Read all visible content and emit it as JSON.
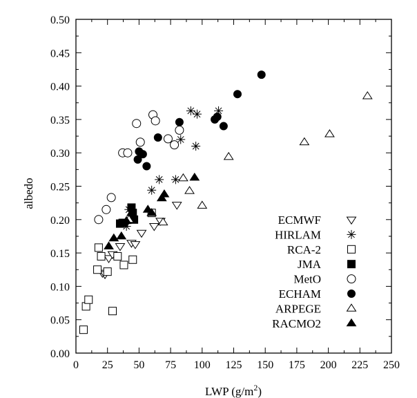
{
  "chart_data": {
    "type": "scatter",
    "title": "",
    "xlabel": "LWP (g/m",
    "xlabel_superscript": "2",
    "xlabel_suffix": ")",
    "ylabel": "albedo",
    "xlim": [
      0,
      250
    ],
    "ylim": [
      0,
      0.5
    ],
    "x_ticks": [
      0,
      25,
      50,
      75,
      100,
      125,
      150,
      175,
      200,
      225,
      250
    ],
    "y_ticks": [
      "0.00",
      "0.05",
      "0.10",
      "0.15",
      "0.20",
      "0.25",
      "0.30",
      "0.35",
      "0.40",
      "0.45",
      "0.50"
    ],
    "grid": false,
    "legend_position": "bottom-right",
    "series": [
      {
        "name": "ECMWF",
        "marker": "triangle-down-open",
        "points": [
          [
            21,
            0.12
          ],
          [
            23,
            0.118
          ],
          [
            26,
            0.142
          ],
          [
            29,
            0.148
          ],
          [
            35,
            0.16
          ],
          [
            44,
            0.165
          ],
          [
            47,
            0.163
          ],
          [
            52,
            0.18
          ],
          [
            62,
            0.19
          ],
          [
            67,
            0.198
          ],
          [
            80,
            0.222
          ]
        ]
      },
      {
        "name": "HIRLAM",
        "marker": "asterisk",
        "points": [
          [
            40,
            0.19
          ],
          [
            42,
            0.215
          ],
          [
            60,
            0.244
          ],
          [
            66,
            0.26
          ],
          [
            79,
            0.26
          ],
          [
            83,
            0.32
          ],
          [
            91,
            0.363
          ],
          [
            95,
            0.31
          ],
          [
            96,
            0.358
          ],
          [
            113,
            0.363
          ]
        ]
      },
      {
        "name": "RCA-2",
        "marker": "square-open",
        "points": [
          [
            6,
            0.035
          ],
          [
            8,
            0.07
          ],
          [
            10,
            0.08
          ],
          [
            17,
            0.125
          ],
          [
            18,
            0.158
          ],
          [
            20,
            0.145
          ],
          [
            25,
            0.122
          ],
          [
            29,
            0.063
          ],
          [
            33,
            0.145
          ],
          [
            37,
            0.195
          ],
          [
            38,
            0.132
          ],
          [
            45,
            0.14
          ],
          [
            60,
            0.21
          ]
        ]
      },
      {
        "name": "JMA",
        "marker": "square-filled",
        "points": [
          [
            35,
            0.194
          ],
          [
            38,
            0.195
          ],
          [
            44,
            0.218
          ],
          [
            45,
            0.21
          ],
          [
            46,
            0.2
          ]
        ]
      },
      {
        "name": "MetO",
        "marker": "circle-open",
        "points": [
          [
            18,
            0.2
          ],
          [
            24,
            0.215
          ],
          [
            28,
            0.233
          ],
          [
            37,
            0.3
          ],
          [
            41,
            0.3
          ],
          [
            48,
            0.344
          ],
          [
            51,
            0.316
          ],
          [
            61,
            0.357
          ],
          [
            63,
            0.348
          ],
          [
            73,
            0.321
          ],
          [
            78,
            0.312
          ],
          [
            82,
            0.334
          ]
        ]
      },
      {
        "name": "ECHAM",
        "marker": "circle-filled",
        "points": [
          [
            49,
            0.29
          ],
          [
            50,
            0.302
          ],
          [
            53,
            0.298
          ],
          [
            56,
            0.28
          ],
          [
            65,
            0.323
          ],
          [
            82,
            0.346
          ],
          [
            110,
            0.35
          ],
          [
            112,
            0.354
          ],
          [
            117,
            0.34
          ],
          [
            128,
            0.388
          ],
          [
            147,
            0.417
          ]
        ]
      },
      {
        "name": "ARPEGE",
        "marker": "triangle-up-open",
        "points": [
          [
            42,
            0.2
          ],
          [
            69,
            0.196
          ],
          [
            85,
            0.262
          ],
          [
            90,
            0.243
          ],
          [
            100,
            0.221
          ],
          [
            121,
            0.294
          ],
          [
            181,
            0.316
          ],
          [
            201,
            0.328
          ],
          [
            231,
            0.385
          ]
        ]
      },
      {
        "name": "RACMO2",
        "marker": "triangle-up-filled",
        "points": [
          [
            26,
            0.16
          ],
          [
            30,
            0.172
          ],
          [
            36,
            0.175
          ],
          [
            40,
            0.198
          ],
          [
            44,
            0.21
          ],
          [
            57,
            0.215
          ],
          [
            60,
            0.21
          ],
          [
            68,
            0.232
          ],
          [
            70,
            0.238
          ],
          [
            94,
            0.263
          ]
        ]
      }
    ]
  }
}
